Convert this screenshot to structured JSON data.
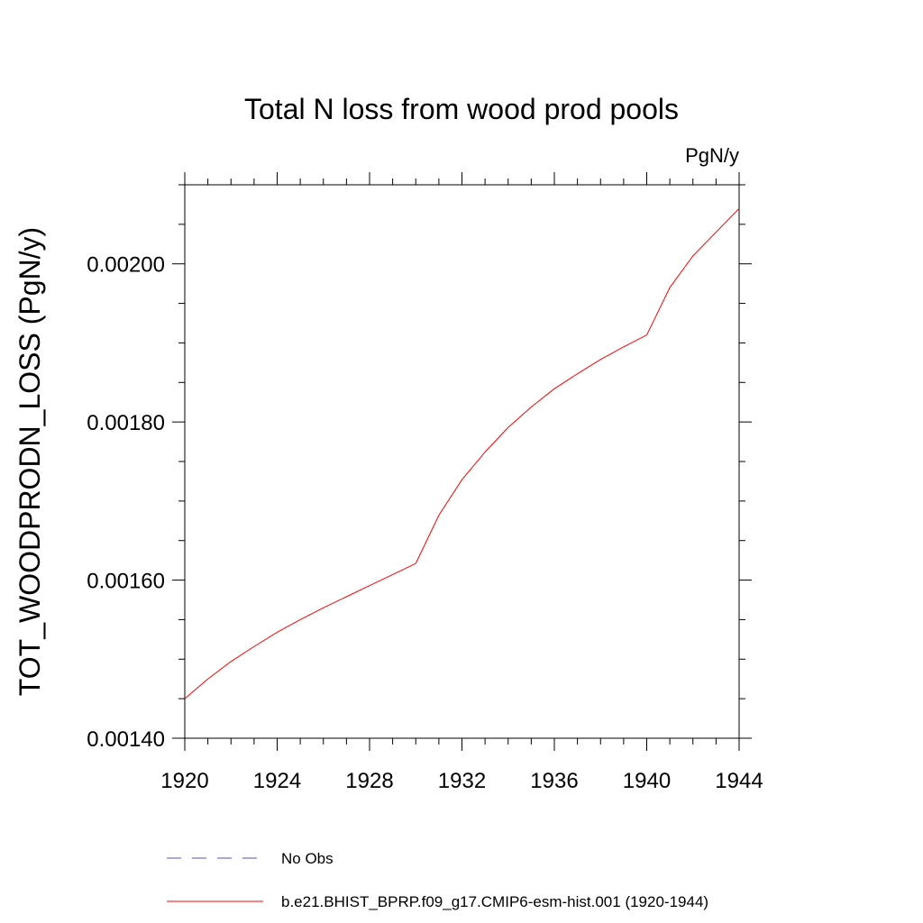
{
  "chart_data": {
    "type": "line",
    "title": "Total N loss from wood prod pools",
    "units_label": "PgN/y",
    "xlabel": "",
    "ylabel": "TOT_WOODPRODN_LOSS  (PgN/y)",
    "xlim": [
      1920,
      1944
    ],
    "ylim": [
      0.0014,
      0.0021
    ],
    "x_ticks": [
      "1920",
      "1924",
      "1928",
      "1932",
      "1936",
      "1940",
      "1944"
    ],
    "y_ticks": [
      "0.00140",
      "0.00160",
      "0.00180",
      "0.00200"
    ],
    "grid": false,
    "legend_position": "bottom",
    "series": [
      {
        "name": "No Obs",
        "color": "#5a4fc8",
        "style": "dashed",
        "x": [],
        "values": []
      },
      {
        "name": "b.e21.BHIST_BPRP.f09_g17.CMIP6-esm-hist.001 (1920-1944)",
        "color": "#ff0000",
        "style": "solid",
        "x": [
          1920,
          1921,
          1922,
          1923,
          1924,
          1925,
          1926,
          1927,
          1928,
          1929,
          1930,
          1931,
          1932,
          1933,
          1934,
          1935,
          1936,
          1937,
          1938,
          1939,
          1940,
          1941,
          1942,
          1943,
          1944
        ],
        "values": [
          0.00145,
          0.001475,
          0.001497,
          0.001516,
          0.001534,
          0.00155,
          0.001565,
          0.001579,
          0.001593,
          0.001607,
          0.001621,
          0.001682,
          0.001727,
          0.001762,
          0.001793,
          0.001819,
          0.001842,
          0.001861,
          0.001879,
          0.001895,
          0.00191,
          0.00197,
          0.00201,
          0.00204,
          0.00207
        ]
      }
    ]
  }
}
